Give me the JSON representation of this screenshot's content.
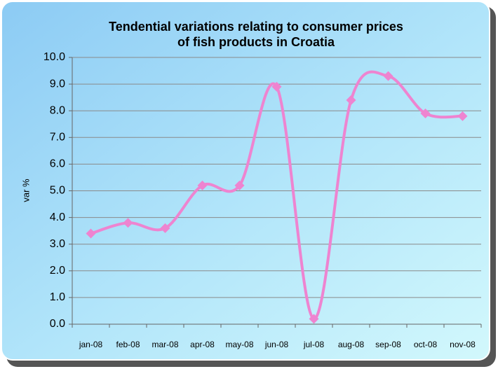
{
  "chart_data": {
    "type": "line",
    "title": [
      "Tendential variations relating to consumer prices",
      "of fish products in Croatia"
    ],
    "y_label": "var %",
    "categories": [
      "jan-08",
      "feb-08",
      "mar-08",
      "apr-08",
      "may-08",
      "jun-08",
      "jul-08",
      "aug-08",
      "sep-08",
      "oct-08",
      "nov-08"
    ],
    "series": [
      {
        "name": "var %",
        "color": "#ee84d0",
        "values": [
          3.4,
          3.8,
          3.6,
          5.2,
          5.2,
          8.9,
          0.2,
          8.4,
          9.3,
          7.9,
          7.8
        ]
      }
    ],
    "ylim": [
      0,
      10
    ],
    "yticks": [
      {
        "value": 0,
        "label": "0.0"
      },
      {
        "value": 1,
        "label": "1.0"
      },
      {
        "value": 2,
        "label": "2.0"
      },
      {
        "value": 3,
        "label": "3.0"
      },
      {
        "value": 4,
        "label": "4.0"
      },
      {
        "value": 5,
        "label": "5.0"
      },
      {
        "value": 6,
        "label": "6.0"
      },
      {
        "value": 7,
        "label": "7.0"
      },
      {
        "value": 8,
        "label": "8.0"
      },
      {
        "value": 9,
        "label": "9.0"
      },
      {
        "value": 10,
        "label": "10.0"
      }
    ],
    "grid": true,
    "smooth": true
  }
}
